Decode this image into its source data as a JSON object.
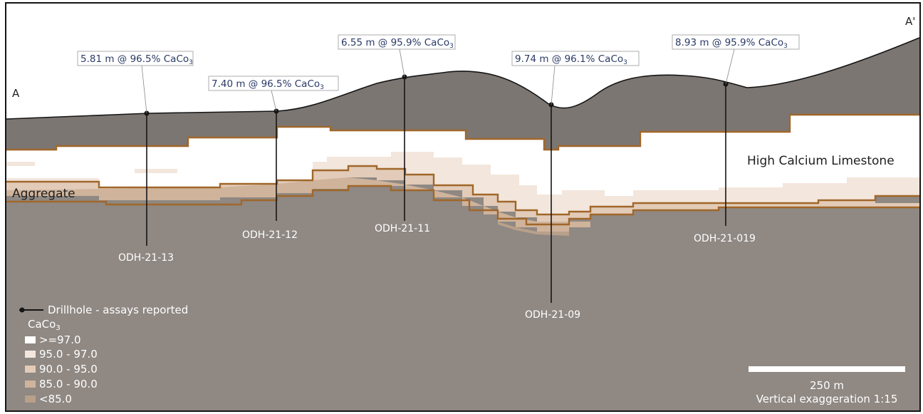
{
  "section": {
    "start_label": "A",
    "end_label": "A'",
    "units": {
      "high_calcium": "High Calcium Limestone",
      "aggregate": "Aggregate"
    },
    "drillholes": [
      {
        "id": "ODH-21-13",
        "assay_value": "5.81 m @ 96.5% CaCo",
        "assay_sub": "3"
      },
      {
        "id": "ODH-21-12",
        "assay_value": "7.40 m @ 96.5% CaCo",
        "assay_sub": "3"
      },
      {
        "id": "ODH-21-11",
        "assay_value": "6.55 m @ 95.9% CaCo",
        "assay_sub": "3"
      },
      {
        "id": "ODH-21-09",
        "assay_value": "9.74 m @ 96.1% CaCo",
        "assay_sub": "3"
      },
      {
        "id": "ODH-21-019",
        "assay_value": "8.93 m @ 95.9% CaCo",
        "assay_sub": "3"
      }
    ]
  },
  "legend": {
    "drillhole_label": "Drillhole - assays reported",
    "title": "CaCo",
    "title_sub": "3",
    "classes": [
      {
        "label": ">=97.0",
        "color": "#ffffff"
      },
      {
        "label": "95.0 - 97.0",
        "color": "#f3e6dc"
      },
      {
        "label": "90.0 - 95.0",
        "color": "#e2cbb8"
      },
      {
        "label": "85.0 - 90.0",
        "color": "#cfb39b"
      },
      {
        "label": "<85.0",
        "color": "#b9a08a"
      }
    ]
  },
  "scale": {
    "label": "250 m",
    "note": "Vertical exaggeration 1:15"
  },
  "colors": {
    "rock": "#8f8883",
    "cap": "#6e6864",
    "contact": "#a0672a",
    "line": "#151515"
  }
}
